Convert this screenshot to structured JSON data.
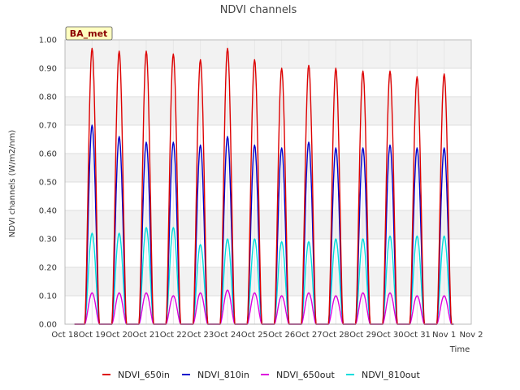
{
  "chart_data": {
    "type": "line",
    "title": "NDVI channels",
    "xlabel": "Time",
    "ylabel": "NDVI channels (W/m2/nm)",
    "badge": "BA_met",
    "ylim": [
      0,
      1.0
    ],
    "xlim": [
      0,
      15
    ],
    "yticks": [
      0.0,
      0.1,
      0.2,
      0.3,
      0.4,
      0.5,
      0.6,
      0.7,
      0.8,
      0.9,
      1.0
    ],
    "ytick_labels": [
      "0.00",
      "0.10",
      "0.20",
      "0.30",
      "0.40",
      "0.50",
      "0.60",
      "0.70",
      "0.80",
      "0.90",
      "1.00"
    ],
    "xticks": [
      0,
      1,
      2,
      3,
      4,
      5,
      6,
      7,
      8,
      9,
      10,
      11,
      12,
      13,
      14,
      15
    ],
    "xtick_labels": [
      "Oct 18",
      "Oct 19",
      "Oct 20",
      "Oct 21",
      "Oct 22",
      "Oct 23",
      "Oct 24",
      "Oct 25",
      "Oct 26",
      "Oct 27",
      "Oct 28",
      "Oct 29",
      "Oct 30",
      "Oct 31",
      "Nov 1",
      "Nov 2"
    ],
    "grid": true,
    "legend_position": "bottom",
    "series": [
      {
        "name": "NDVI_650in",
        "color": "#dd0000",
        "peaks": [
          0.97,
          0.96,
          0.96,
          0.95,
          0.93,
          0.97,
          0.93,
          0.9,
          0.91,
          0.9,
          0.89,
          0.89,
          0.87,
          0.88
        ]
      },
      {
        "name": "NDVI_810in",
        "color": "#0000cc",
        "peaks": [
          0.7,
          0.66,
          0.64,
          0.64,
          0.63,
          0.66,
          0.63,
          0.62,
          0.64,
          0.62,
          0.62,
          0.63,
          0.62,
          0.62
        ]
      },
      {
        "name": "NDVI_650out",
        "color": "#dd00dd",
        "peaks": [
          0.11,
          0.11,
          0.11,
          0.1,
          0.11,
          0.12,
          0.11,
          0.1,
          0.11,
          0.1,
          0.11,
          0.11,
          0.1,
          0.1
        ]
      },
      {
        "name": "NDVI_810out",
        "color": "#00dddd",
        "peaks": [
          0.32,
          0.32,
          0.34,
          0.34,
          0.28,
          0.3,
          0.3,
          0.29,
          0.29,
          0.3,
          0.3,
          0.31,
          0.31,
          0.31
        ]
      }
    ]
  }
}
